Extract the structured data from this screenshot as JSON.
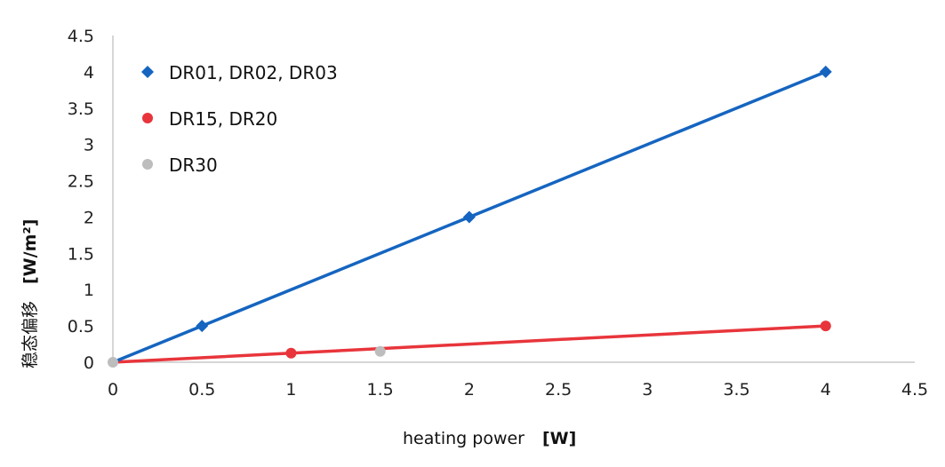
{
  "chart_data": {
    "type": "line",
    "xlabel": "heating power",
    "xlabel_unit": "[W]",
    "ylabel": "稳态偏移",
    "ylabel_unit": "[W/m²]",
    "xlim": [
      0,
      4.5
    ],
    "ylim": [
      0,
      4.5
    ],
    "x_ticks": [
      "0",
      "0.5",
      "1",
      "1.5",
      "2",
      "2.5",
      "3",
      "3.5",
      "4",
      "4.5"
    ],
    "y_ticks": [
      "0",
      "0.5",
      "1",
      "1.5",
      "2",
      "2.5",
      "3",
      "3.5",
      "4",
      "4.5"
    ],
    "grid": false,
    "legend_placement": "top-left",
    "series": [
      {
        "name": "DR01, DR02, DR03",
        "color": "#1565c0",
        "marker": "diamond",
        "line": true,
        "points": [
          [
            0,
            0
          ],
          [
            0.5,
            0.5
          ],
          [
            2,
            2
          ],
          [
            4,
            4
          ]
        ]
      },
      {
        "name": "DR15, DR20",
        "color": "#e8353b",
        "marker": "circle",
        "line": true,
        "points": [
          [
            0,
            0
          ],
          [
            1,
            0.125
          ],
          [
            4,
            0.5
          ]
        ]
      },
      {
        "name": "DR30",
        "color": "#bdbdbd",
        "marker": "circle",
        "line": false,
        "points": [
          [
            0,
            0
          ],
          [
            1.5,
            0.15
          ]
        ]
      }
    ]
  }
}
